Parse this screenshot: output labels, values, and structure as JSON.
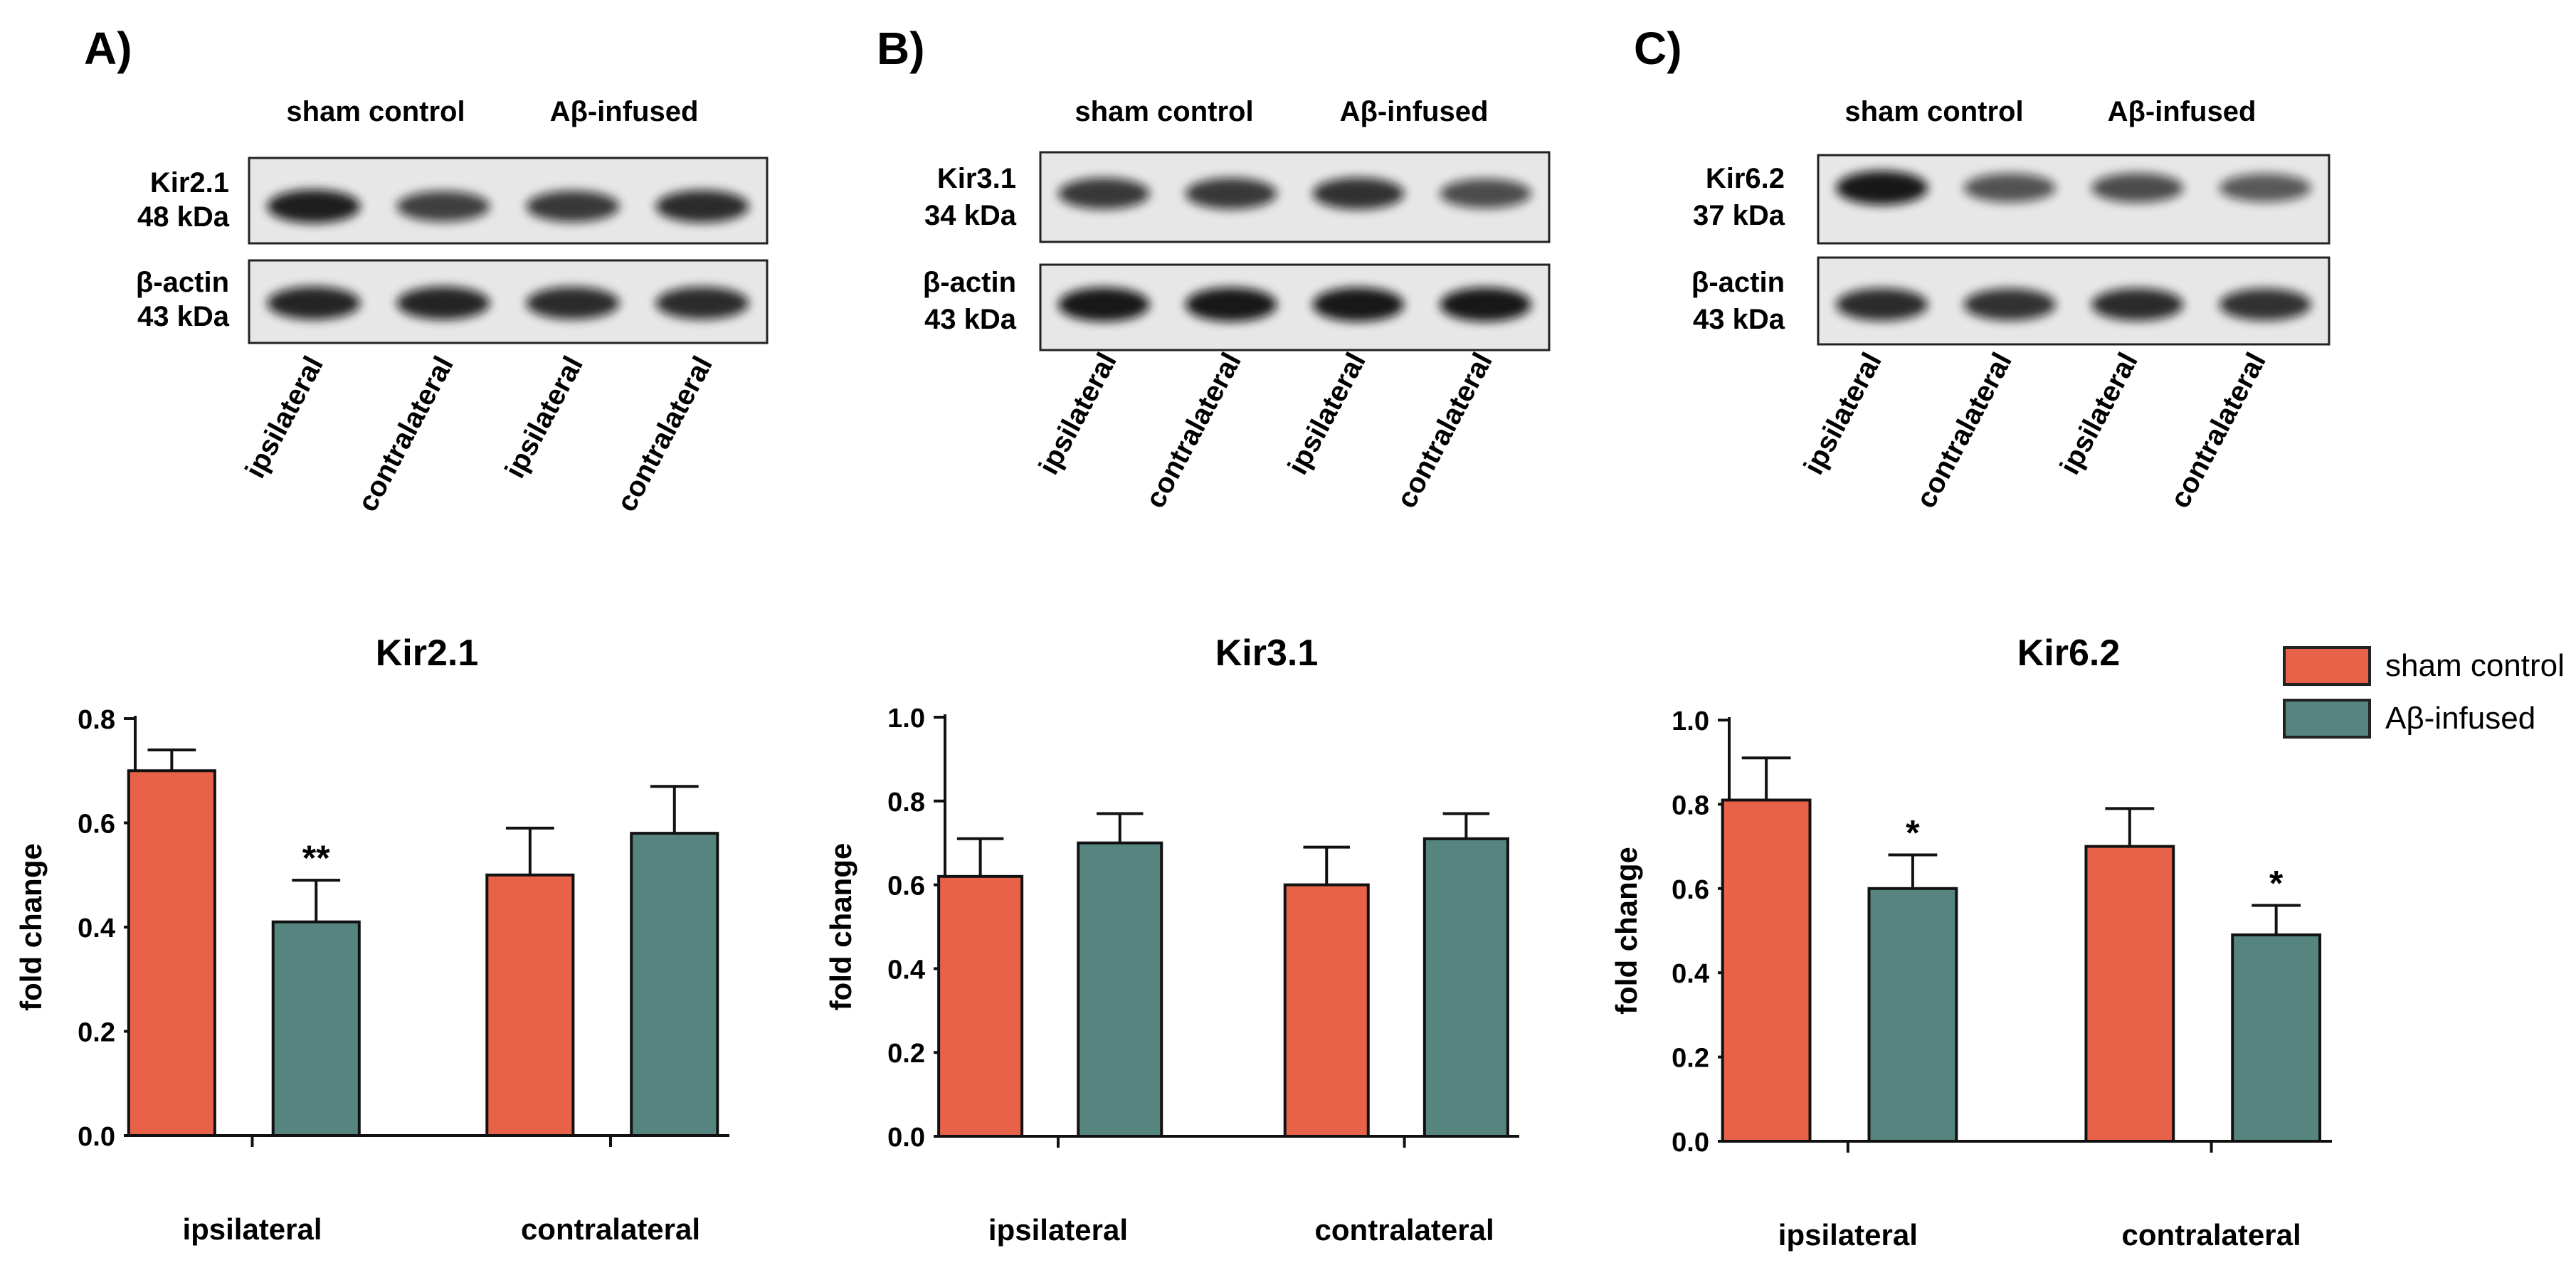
{
  "colors": {
    "sham": "#E8624A",
    "abeta": "#568580",
    "blot_bg": "#e7e7e7",
    "band": "#111111"
  },
  "legend": {
    "sham": "sham control",
    "abeta": "Aβ-infused"
  },
  "panels": [
    {
      "letter": "A)",
      "group_labels": [
        "sham control",
        "Aβ-infused"
      ],
      "protein": {
        "name": "Kir2.1",
        "kda": "48 kDa"
      },
      "actin": {
        "name": "β-actin",
        "kda": "43 kDa"
      },
      "lane_labels": [
        "ipsilateral",
        "contralateral",
        "ipsilateral",
        "contralateral"
      ],
      "protein_band_intensity": [
        0.95,
        0.7,
        0.75,
        0.85
      ],
      "actin_band_intensity": [
        0.9,
        0.9,
        0.85,
        0.85
      ]
    },
    {
      "letter": "B)",
      "group_labels": [
        "sham control",
        "Aβ-infused"
      ],
      "protein": {
        "name": "Kir3.1",
        "kda": "34 kDa"
      },
      "actin": {
        "name": "β-actin",
        "kda": "43 kDa"
      },
      "lane_labels": [
        "ipsilateral",
        "contralateral",
        "ipsilateral",
        "contralateral"
      ],
      "protein_band_intensity": [
        0.75,
        0.75,
        0.8,
        0.6
      ],
      "actin_band_intensity": [
        1.0,
        1.0,
        1.0,
        1.0
      ]
    },
    {
      "letter": "C)",
      "group_labels": [
        "sham control",
        "Aβ-infused"
      ],
      "protein": {
        "name": "Kir6.2",
        "kda": "37 kDa"
      },
      "actin": {
        "name": "β-actin",
        "kda": "43 kDa"
      },
      "lane_labels": [
        "ipsilateral",
        "contralateral",
        "ipsilateral",
        "contralateral"
      ],
      "protein_band_intensity": [
        1.0,
        0.55,
        0.6,
        0.5
      ],
      "actin_band_intensity": [
        0.85,
        0.8,
        0.85,
        0.8
      ]
    }
  ],
  "chart_data": [
    {
      "type": "bar",
      "title": "Kir2.1",
      "ylabel": "fold change",
      "xlabel": "",
      "categories": [
        "ipsilateral",
        "contralateral"
      ],
      "ylim": [
        0,
        0.8
      ],
      "yticks": [
        "0.0",
        "0.2",
        "0.4",
        "0.6",
        "0.8"
      ],
      "series": [
        {
          "name": "sham control",
          "values": [
            0.7,
            0.5
          ],
          "errors": [
            0.04,
            0.09
          ],
          "annotations": [
            "",
            ""
          ]
        },
        {
          "name": "Aβ-infused",
          "values": [
            0.41,
            0.58
          ],
          "errors": [
            0.08,
            0.09
          ],
          "annotations": [
            "**",
            ""
          ]
        }
      ]
    },
    {
      "type": "bar",
      "title": "Kir3.1",
      "ylabel": "fold change",
      "xlabel": "",
      "categories": [
        "ipsilateral",
        "contralateral"
      ],
      "ylim": [
        0,
        1.0
      ],
      "yticks": [
        "0.0",
        "0.2",
        "0.4",
        "0.6",
        "0.8",
        "1.0"
      ],
      "series": [
        {
          "name": "sham control",
          "values": [
            0.62,
            0.6
          ],
          "errors": [
            0.09,
            0.09
          ],
          "annotations": [
            "",
            ""
          ]
        },
        {
          "name": "Aβ-infused",
          "values": [
            0.7,
            0.71
          ],
          "errors": [
            0.07,
            0.06
          ],
          "annotations": [
            "",
            ""
          ]
        }
      ]
    },
    {
      "type": "bar",
      "title": "Kir6.2",
      "ylabel": "fold change",
      "xlabel": "",
      "categories": [
        "ipsilateral",
        "contralateral"
      ],
      "ylim": [
        0,
        1.0
      ],
      "yticks": [
        "0.0",
        "0.2",
        "0.4",
        "0.6",
        "0.8",
        "1.0"
      ],
      "series": [
        {
          "name": "sham control",
          "values": [
            0.81,
            0.7
          ],
          "errors": [
            0.1,
            0.09
          ],
          "annotations": [
            "",
            ""
          ]
        },
        {
          "name": "Aβ-infused",
          "values": [
            0.6,
            0.49
          ],
          "errors": [
            0.08,
            0.07
          ],
          "annotations": [
            "*",
            "*"
          ]
        }
      ]
    }
  ]
}
